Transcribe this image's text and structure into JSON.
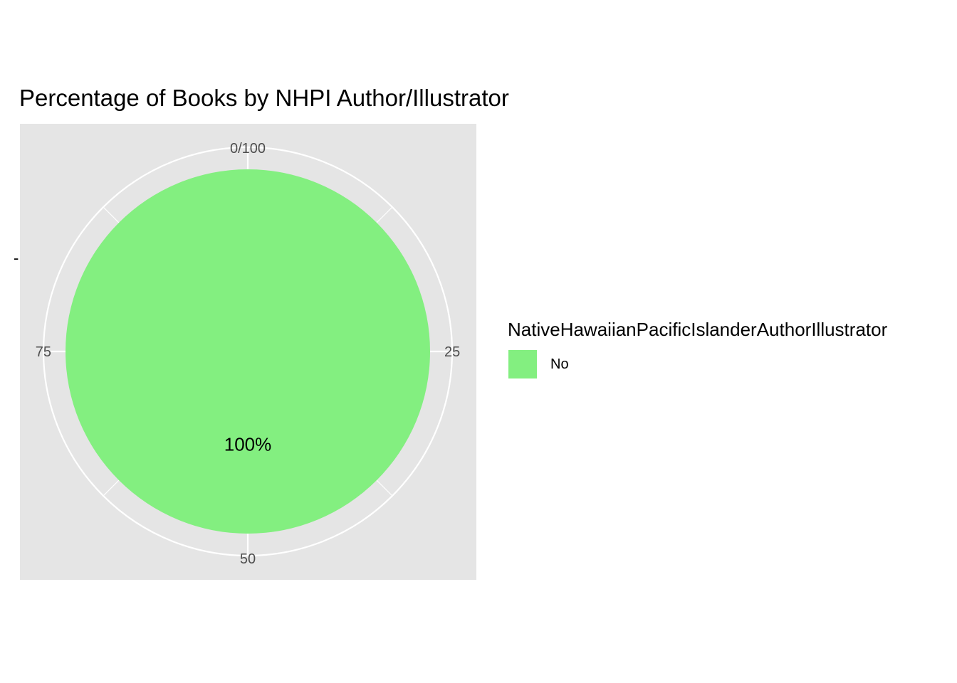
{
  "chart_data": {
    "type": "pie",
    "title": "Percentage of Books by NHPI Author/Illustrator",
    "y_tick_label": "-",
    "theta_ticks": [
      "0/100",
      "25",
      "50",
      "75"
    ],
    "legend": {
      "title": "NativeHawaiianPacificIslanderAuthorIllustrator",
      "placement": "right"
    },
    "series": [
      {
        "name": "No",
        "value": 100,
        "label": "100%",
        "color": "#83ef80"
      }
    ],
    "panel_background": "#e5e5e5",
    "grid_color": "#ffffff",
    "grid": true
  }
}
